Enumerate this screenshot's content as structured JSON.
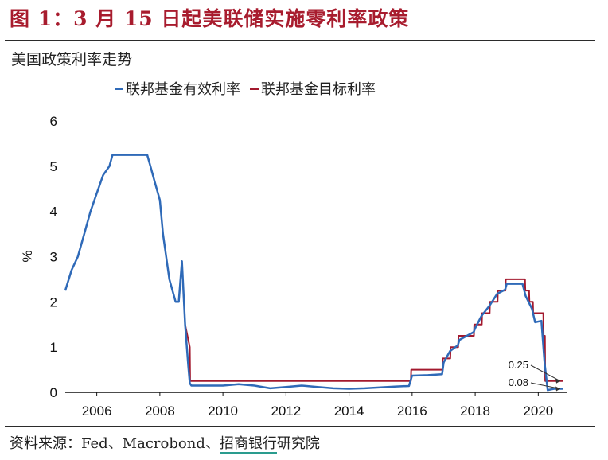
{
  "figure": {
    "title": "图 1：3 月 15 日起美联储实施零利率政策",
    "source_prefix": "资料来源：Fed、Macrobond、",
    "source_brand": "招商银行",
    "source_suffix": "研究院"
  },
  "colors": {
    "effective": "#2f6ab8",
    "target": "#a3192e",
    "title": "#a81c2e"
  },
  "chart_data": {
    "type": "line",
    "title": "美国政策利率走势",
    "xlabel": "",
    "ylabel": "%",
    "xlim": [
      2005.0,
      2020.9
    ],
    "ylim": [
      0,
      6
    ],
    "xticks": [
      "2006",
      "2008",
      "2010",
      "2012",
      "2014",
      "2016",
      "2018",
      "2020"
    ],
    "yticks": [
      "0",
      "1",
      "2",
      "3",
      "4",
      "5",
      "6"
    ],
    "legend_position": "top",
    "series": [
      {
        "name": "联邦基金有效利率",
        "color": "#2f6ab8",
        "x": [
          2005.0,
          2005.2,
          2005.4,
          2005.6,
          2005.8,
          2006.0,
          2006.2,
          2006.4,
          2006.5,
          2006.7,
          2007.0,
          2007.3,
          2007.6,
          2007.7,
          2007.8,
          2007.9,
          2008.0,
          2008.1,
          2008.2,
          2008.3,
          2008.5,
          2008.6,
          2008.7,
          2008.8,
          2008.9,
          2008.95,
          2009.0,
          2009.5,
          2010.0,
          2010.5,
          2011.0,
          2011.5,
          2012.0,
          2012.5,
          2013.0,
          2013.5,
          2014.0,
          2014.5,
          2015.0,
          2015.5,
          2015.9,
          2016.0,
          2016.5,
          2016.95,
          2017.0,
          2017.2,
          2017.45,
          2017.5,
          2017.95,
          2018.0,
          2018.2,
          2018.45,
          2018.7,
          2018.95,
          2019.0,
          2019.5,
          2019.6,
          2019.8,
          2019.9,
          2020.1,
          2020.2,
          2020.3,
          2020.5,
          2020.8
        ],
        "y": [
          2.25,
          2.7,
          3.0,
          3.5,
          4.0,
          4.4,
          4.8,
          5.0,
          5.25,
          5.25,
          5.25,
          5.25,
          5.25,
          5.0,
          4.75,
          4.5,
          4.25,
          3.5,
          3.0,
          2.5,
          2.0,
          2.0,
          2.9,
          1.5,
          0.6,
          0.2,
          0.15,
          0.15,
          0.15,
          0.18,
          0.15,
          0.09,
          0.12,
          0.15,
          0.12,
          0.09,
          0.08,
          0.09,
          0.11,
          0.13,
          0.14,
          0.37,
          0.38,
          0.4,
          0.66,
          0.91,
          1.04,
          1.16,
          1.33,
          1.42,
          1.69,
          1.91,
          2.18,
          2.27,
          2.4,
          2.4,
          2.13,
          1.85,
          1.55,
          1.58,
          0.65,
          0.05,
          0.08,
          0.08
        ]
      },
      {
        "name": "联邦基金目标利率",
        "color": "#a3192e",
        "x": [
          2008.8,
          2008.95,
          2008.96,
          2015.96,
          2015.97,
          2016.96,
          2016.97,
          2017.21,
          2017.22,
          2017.46,
          2017.47,
          2017.96,
          2017.97,
          2018.21,
          2018.22,
          2018.46,
          2018.47,
          2018.71,
          2018.72,
          2018.96,
          2018.97,
          2019.58,
          2019.59,
          2019.71,
          2019.72,
          2019.83,
          2019.84,
          2020.16,
          2020.17,
          2020.21,
          2020.22,
          2020.8
        ],
        "y": [
          1.5,
          1.0,
          0.25,
          0.25,
          0.5,
          0.5,
          0.75,
          0.75,
          1.0,
          1.0,
          1.25,
          1.25,
          1.5,
          1.5,
          1.75,
          1.75,
          2.0,
          2.0,
          2.25,
          2.25,
          2.5,
          2.5,
          2.25,
          2.25,
          2.0,
          2.0,
          1.75,
          1.75,
          1.25,
          1.25,
          0.25,
          0.25
        ]
      }
    ],
    "annotations": [
      {
        "text": "0.25",
        "x": 2020.8,
        "y": 0.25
      },
      {
        "text": "0.08",
        "x": 2020.8,
        "y": 0.08
      }
    ]
  }
}
